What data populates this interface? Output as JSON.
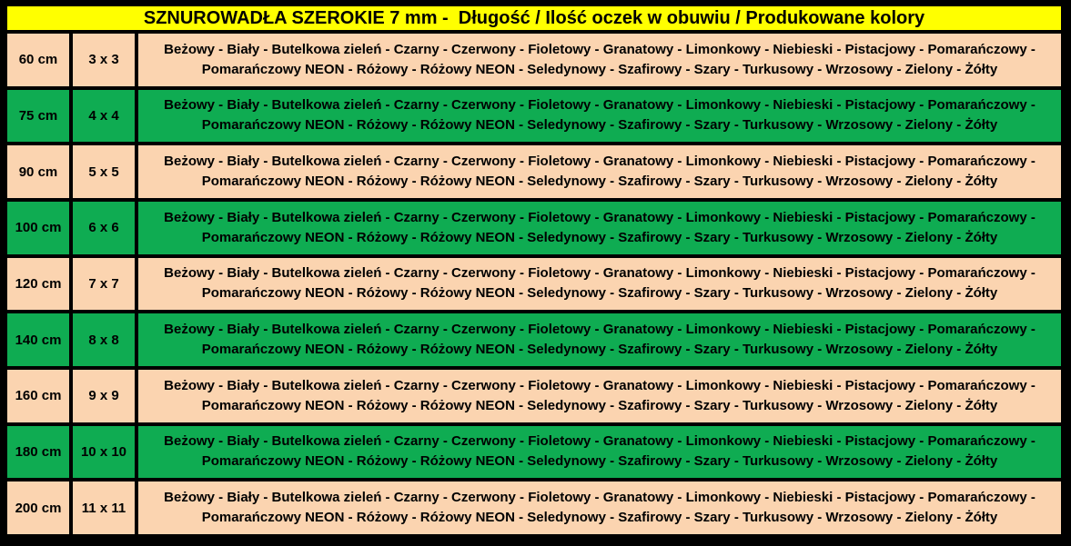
{
  "palette": {
    "header_bg": "#FFFF00",
    "row_light_bg": "#FBD4B0",
    "row_green_bg": "#0FAC52",
    "border_color": "#000000",
    "text_color": "#000000",
    "page_bg": "#FFFFFF"
  },
  "header": {
    "title": "SZNUROWADŁA SZEROKIE 7 mm -  Długość / Ilość oczek w obuwiu / Produkowane kolory"
  },
  "colors_cell": {
    "line1": "Beżowy - Biały - Butelkowa zieleń - Czarny - Czerwony - Fioletowy - Granatowy - Limonkowy - Niebieski - Pistacjowy - Pomarańczowy -",
    "line2": "Pomarańczowy NEON - Różowy - Różowy NEON - Seledynowy - Szafirowy - Szary - Turkusowy - Wrzosowy - Zielony - Żółty",
    "color_names": [
      "Beżowy",
      "Biały",
      "Butelkowa zieleń",
      "Czarny",
      "Czerwony",
      "Fioletowy",
      "Granatowy",
      "Limonkowy",
      "Niebieski",
      "Pistacjowy",
      "Pomarańczowy",
      "Pomarańczowy NEON",
      "Różowy",
      "Różowy NEON",
      "Seledynowy",
      "Szafirowy",
      "Szary",
      "Turkusowy",
      "Wrzosowy",
      "Zielony",
      "Żółty"
    ]
  },
  "rows": [
    {
      "length": "60 cm",
      "eyelets": "3 x 3",
      "variant": "light"
    },
    {
      "length": "75 cm",
      "eyelets": "4 x 4",
      "variant": "green"
    },
    {
      "length": "90 cm",
      "eyelets": "5 x 5",
      "variant": "light"
    },
    {
      "length": "100 cm",
      "eyelets": "6 x 6",
      "variant": "green"
    },
    {
      "length": "120 cm",
      "eyelets": "7 x 7",
      "variant": "light"
    },
    {
      "length": "140 cm",
      "eyelets": "8 x 8",
      "variant": "green"
    },
    {
      "length": "160 cm",
      "eyelets": "9 x 9",
      "variant": "light"
    },
    {
      "length": "180 cm",
      "eyelets": "10 x 10",
      "variant": "green"
    },
    {
      "length": "200 cm",
      "eyelets": "11 x 11",
      "variant": "light"
    }
  ]
}
